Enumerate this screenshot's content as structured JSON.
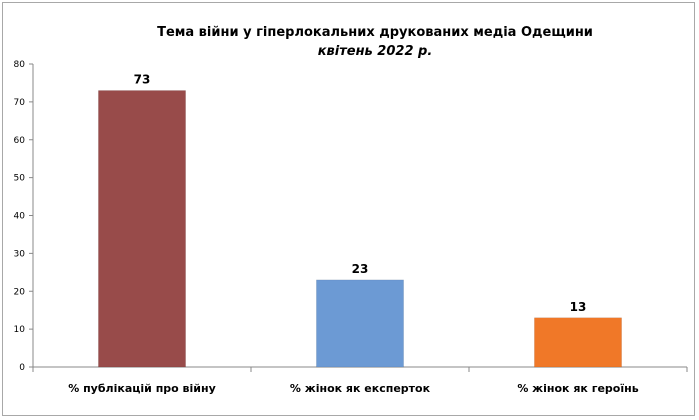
{
  "chart_data": {
    "type": "bar",
    "title": "Тема війни у гіперлокальних друкованих медіа Одещини",
    "subtitle": "квітень 2022 р.",
    "categories": [
      "% публікацій про війну",
      "% жінок як експерток",
      "% жінок як героїнь"
    ],
    "values": [
      73,
      23,
      13
    ],
    "data_labels": [
      "73",
      "23",
      "13"
    ],
    "colors": [
      "#984B4A",
      "#6C9AD4",
      "#F07828"
    ],
    "ylim": [
      0,
      80
    ],
    "yticks": [
      "0",
      "10",
      "20",
      "30",
      "40",
      "50",
      "60",
      "70",
      "80"
    ],
    "ytick_values": [
      0,
      10,
      20,
      30,
      40,
      50,
      60,
      70,
      80
    ],
    "grid": false,
    "legend": "none"
  }
}
